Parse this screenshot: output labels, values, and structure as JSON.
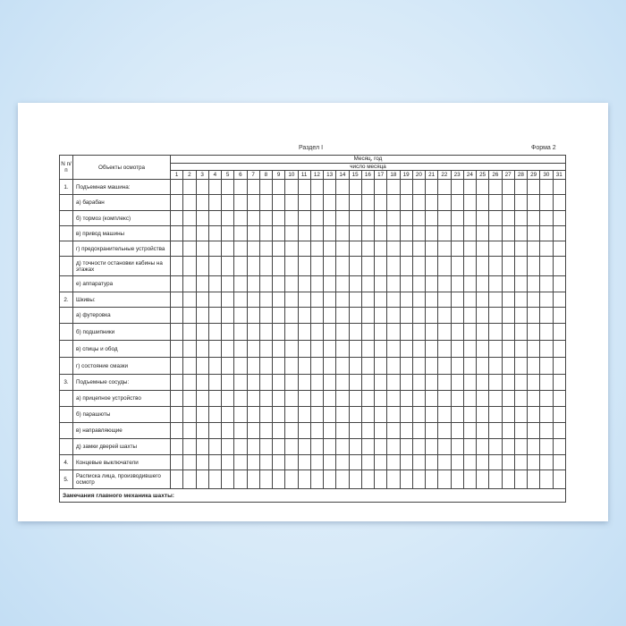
{
  "header": {
    "section": "Раздел I",
    "form": "Форма 2"
  },
  "table": {
    "col_num": "N п/п",
    "col_objects": "Объекты осмотра",
    "month_year": "Месяц, год",
    "day_of_month": "число месяца",
    "days": [
      "1",
      "2",
      "3",
      "4",
      "5",
      "6",
      "7",
      "8",
      "9",
      "10",
      "11",
      "12",
      "13",
      "14",
      "15",
      "16",
      "17",
      "18",
      "19",
      "20",
      "21",
      "22",
      "23",
      "24",
      "25",
      "26",
      "27",
      "28",
      "29",
      "30",
      "31"
    ],
    "rows": [
      {
        "num": "1.",
        "label": "Подъемная машина:"
      },
      {
        "num": "",
        "label": "а) барабан"
      },
      {
        "num": "",
        "label": "б) тормоз (комплекс)"
      },
      {
        "num": "",
        "label": "в) привод машины"
      },
      {
        "num": "",
        "label": "г) предохранительные устройства"
      },
      {
        "num": "",
        "label": "д) точности остановки кабины на этажах"
      },
      {
        "num": "",
        "label": "е) аппаратура"
      },
      {
        "num": "2.",
        "label": "Шкивы:"
      },
      {
        "num": "",
        "label": "а) футеровка"
      },
      {
        "num": "",
        "label": "б) подшипники"
      },
      {
        "num": "",
        "label": "в) спицы и обод"
      },
      {
        "num": "",
        "label": "г) состояние смазки"
      },
      {
        "num": "3.",
        "label": "Подъемные сосуды:"
      },
      {
        "num": "",
        "label": "а) прицепное устройство"
      },
      {
        "num": "",
        "label": "б) парашюты"
      },
      {
        "num": "",
        "label": "в) направляющие"
      },
      {
        "num": "",
        "label": "д) замки дверей шахты"
      },
      {
        "num": "4.",
        "label": "Концевые выключатели"
      },
      {
        "num": "5.",
        "label": "Расписка лица, производившего осмотр"
      }
    ],
    "remarks": "Замечания главного механика шахты:"
  }
}
